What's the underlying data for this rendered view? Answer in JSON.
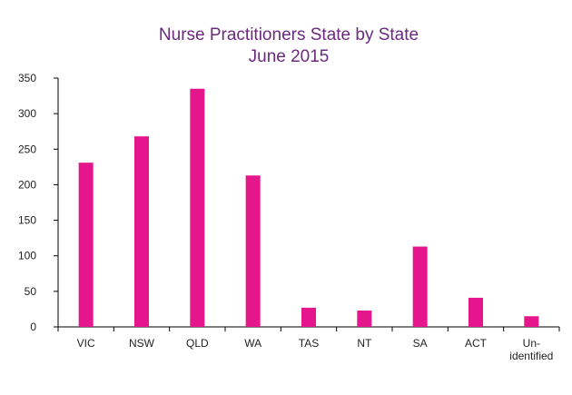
{
  "chart_data": {
    "type": "bar",
    "title": "Nurse Practitioners State by State",
    "subtitle": "June 2015",
    "xlabel": "",
    "ylabel": "",
    "categories": [
      "VIC",
      "NSW",
      "QLD",
      "WA",
      "TAS",
      "NT",
      "SA",
      "ACT",
      "Un-identified"
    ],
    "category_lines": [
      [
        "VIC"
      ],
      [
        "NSW"
      ],
      [
        "QLD"
      ],
      [
        "WA"
      ],
      [
        "TAS"
      ],
      [
        "NT"
      ],
      [
        "SA"
      ],
      [
        "ACT"
      ],
      [
        "Un-",
        "identified"
      ]
    ],
    "values": [
      231,
      268,
      335,
      213,
      27,
      23,
      113,
      41,
      15
    ],
    "ylim": [
      0,
      350
    ],
    "yticks": [
      0,
      50,
      100,
      150,
      200,
      250,
      300,
      350
    ],
    "grid": false,
    "legend": "none",
    "colors": {
      "bar": "#e5168c",
      "title": "#6b2a7e",
      "axis": "#000000"
    }
  }
}
